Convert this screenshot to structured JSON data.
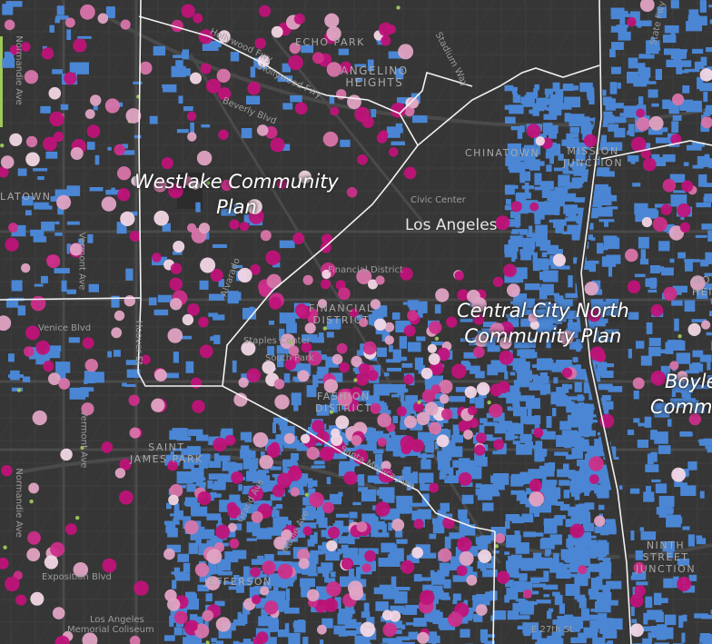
{
  "map": {
    "colors": {
      "background": "#363636",
      "streets_major": "#4a4a4a",
      "streets_minor": "#3f3f3f",
      "parcels": "#4a86d4",
      "boundary": "#f2f2f2",
      "dots": [
        "#c0137a",
        "#cc2f8a",
        "#e0a4c4",
        "#f2d7e5",
        "#d875aa",
        "#9dc85a"
      ]
    },
    "plan_labels": {
      "westlake": "Westlake Community Plan",
      "central_city_north": "Central City North Community Plan",
      "boyle_heights": "Boyle Heights Community Plan"
    },
    "plan_label_visible_text": {
      "westlake_l1": "Westlake Community",
      "westlake_l2": "Plan",
      "ccn_l1": "Central City North",
      "ccn_l2": "Community Plan",
      "boyle_l1": "Boyle",
      "boyle_l2": "Comm"
    },
    "city_label": "Los Angeles",
    "area_labels": {
      "echo_park": "ECHO PARK",
      "angelino_heights_1": "ANGELINO",
      "angelino_heights_2": "HEIGHTS",
      "chinatown": "CHINATOWN",
      "mission_junction_1": "MISSION",
      "mission_junction_2": "JUNCTION",
      "financial_1": "FINANCIAL",
      "financial_2": "DISTRICT",
      "fashion_1": "FASHION",
      "fashion_2": "DISTRICT",
      "saint_james_1": "SAINT",
      "saint_james_2": "JAMES PARK",
      "jefferson": "JEFFERSON",
      "ninth_street_1": "NINTH",
      "ninth_street_2": "STREET",
      "ninth_street_3": "JUNCTION",
      "westlake_town": "LATOWN",
      "boyle_partial_1": "BO",
      "boyle_partial_2": "HEI"
    },
    "street_labels": {
      "hollywood_fwy_1": "Hollywood Fwy",
      "hollywood_fwy_2": "Hollywood Fwy",
      "beverly": "Beverly Blvd",
      "stadium": "Stadium Way",
      "state_fwy": "State Fwy",
      "normandie_1": "Normandie Ave",
      "normandie_2": "Normandie Ave",
      "vermont_1": "Vermont Ave",
      "vermont_2": "Vermont Ave",
      "venice": "Venice Blvd",
      "civic_center": "Civic Center",
      "financial_district": "Financial District",
      "staples": "Staples Center",
      "south_park": "South Park",
      "exposition": "Exposition Blvd",
      "coliseum_1": "Los Angeles",
      "coliseum_2": "Memorial Coliseum",
      "e27": "E 27th St",
      "hoover": "Hoover St",
      "figueroa": "Figueroa",
      "santa_monica_fwy": "Santa Monica Fwy",
      "grand": "Grand Ave",
      "maple": "Maple Ave",
      "alvarado": "Alvarado"
    }
  }
}
